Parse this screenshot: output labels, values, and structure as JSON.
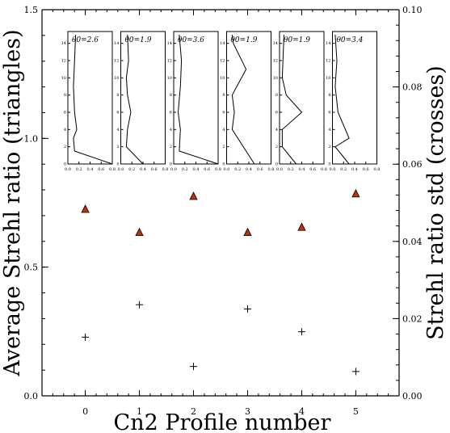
{
  "chart_data": {
    "type": "scatter",
    "xlabel": "Cn2 Profile number",
    "ylabel_left": "Average Strehl ratio (triangles)",
    "ylabel_right": "Strehl ratio std (crosses)",
    "xlim": [
      -0.8,
      5.8
    ],
    "x_ticks": [
      "0",
      "1",
      "2",
      "3",
      "4",
      "5"
    ],
    "ylim_left": [
      0.0,
      1.5
    ],
    "ylim_right": [
      0.0,
      0.1
    ],
    "y_left_ticks": [
      "0.0",
      "0.5",
      "1.0",
      "1.5"
    ],
    "y_right_ticks": [
      "0.00",
      "0.02",
      "0.04",
      "0.06",
      "0.08",
      "0.10"
    ],
    "series": [
      {
        "marker": "triangle",
        "color": "#c0300f",
        "axis": "left",
        "x": [
          0,
          1,
          2,
          3,
          4,
          5
        ],
        "values": [
          0.725,
          0.635,
          0.775,
          0.635,
          0.655,
          0.785
        ]
      },
      {
        "marker": "cross",
        "color": "#000000",
        "axis": "right",
        "x": [
          0,
          1,
          2,
          3,
          4,
          5
        ],
        "values": [
          0.0152,
          0.0236,
          0.0076,
          0.0225,
          0.0166,
          0.0063
        ]
      }
    ],
    "insets": {
      "y_ticks": [
        "0",
        "2",
        "4",
        "6",
        "8",
        "10",
        "12",
        "14"
      ],
      "x_ticks": [
        "0.0",
        "0.2",
        "0.4",
        "0.6",
        "0.8"
      ],
      "ylim": [
        0,
        15
      ],
      "xlim": [
        0,
        0.8
      ],
      "profiles": [
        {
          "label": "θ0=2.6",
          "points": [
            [
              0.8,
              0
            ],
            [
              0.12,
              1.5
            ],
            [
              0.1,
              3
            ],
            [
              0.16,
              4
            ],
            [
              0.12,
              6
            ],
            [
              0.1,
              9
            ],
            [
              0.12,
              12
            ],
            [
              0.14,
              15
            ]
          ]
        },
        {
          "label": "θ0=1.9",
          "points": [
            [
              0.4,
              0
            ],
            [
              0.1,
              2
            ],
            [
              0.12,
              4
            ],
            [
              0.18,
              6
            ],
            [
              0.12,
              8
            ],
            [
              0.1,
              10
            ],
            [
              0.14,
              12
            ],
            [
              0.12,
              15
            ]
          ]
        },
        {
          "label": "θ0=3.6",
          "points": [
            [
              0.8,
              0
            ],
            [
              0.1,
              1.5
            ],
            [
              0.12,
              4
            ],
            [
              0.08,
              6
            ],
            [
              0.12,
              9
            ],
            [
              0.14,
              12
            ],
            [
              0.1,
              15
            ]
          ]
        },
        {
          "label": "θ0=1.9",
          "points": [
            [
              0.5,
              0
            ],
            [
              0.1,
              4
            ],
            [
              0.14,
              6
            ],
            [
              0.1,
              8
            ],
            [
              0.35,
              11
            ],
            [
              0.12,
              14
            ],
            [
              0.1,
              15
            ]
          ]
        },
        {
          "label": "θ0=1.9",
          "points": [
            [
              0.3,
              0
            ],
            [
              0.05,
              2
            ],
            [
              0.05,
              4
            ],
            [
              0.4,
              6
            ],
            [
              0.12,
              8
            ],
            [
              0.05,
              10
            ],
            [
              0.08,
              15
            ]
          ]
        },
        {
          "label": "θ0=3.4",
          "points": [
            [
              0.3,
              0
            ],
            [
              0.05,
              2
            ],
            [
              0.3,
              3
            ],
            [
              0.1,
              6
            ],
            [
              0.05,
              9
            ],
            [
              0.08,
              12
            ],
            [
              0.05,
              15
            ]
          ]
        }
      ]
    }
  }
}
